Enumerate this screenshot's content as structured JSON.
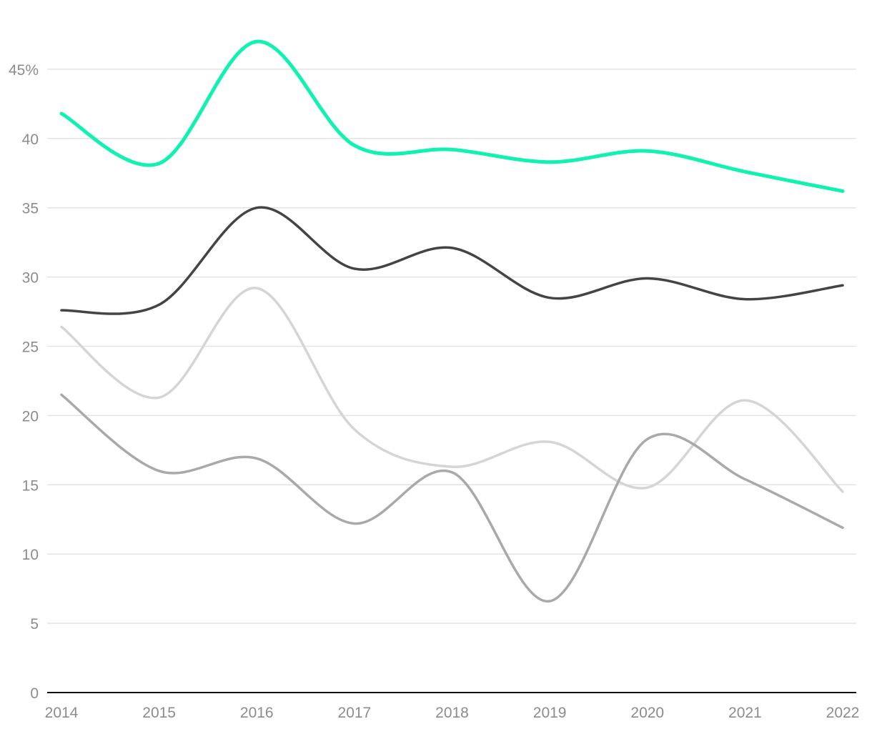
{
  "chart_data": {
    "type": "line",
    "title": "",
    "xlabel": "",
    "ylabel": "",
    "x": [
      "2014",
      "2015",
      "2016",
      "2017",
      "2018",
      "2019",
      "2020",
      "2021",
      "2022"
    ],
    "ylim": [
      0,
      47
    ],
    "yticks": [
      0,
      5,
      10,
      15,
      20,
      25,
      30,
      35,
      40,
      45
    ],
    "ytick_labels": [
      "0",
      "5",
      "10",
      "15",
      "20",
      "25",
      "30",
      "35",
      "40",
      "45%"
    ],
    "grid": true,
    "legend": "none",
    "series": [
      {
        "name": "series-green",
        "color": "#0ff2b2",
        "width": 5,
        "values": [
          41.8,
          38.2,
          47.0,
          39.5,
          39.2,
          38.3,
          39.1,
          37.6,
          36.2
        ]
      },
      {
        "name": "series-dark",
        "color": "#444444",
        "width": 3.5,
        "values": [
          27.6,
          28.0,
          35.0,
          30.6,
          32.1,
          28.5,
          29.9,
          28.4,
          29.4
        ]
      },
      {
        "name": "series-light",
        "color": "#d5d5d5",
        "width": 3.5,
        "values": [
          26.4,
          21.3,
          29.2,
          19.0,
          16.3,
          18.1,
          14.8,
          21.1,
          14.5
        ]
      },
      {
        "name": "series-medium",
        "color": "#a9a9a9",
        "width": 3.5,
        "values": [
          21.5,
          16.0,
          16.9,
          12.2,
          15.9,
          6.6,
          18.3,
          15.4,
          11.9
        ]
      }
    ]
  }
}
